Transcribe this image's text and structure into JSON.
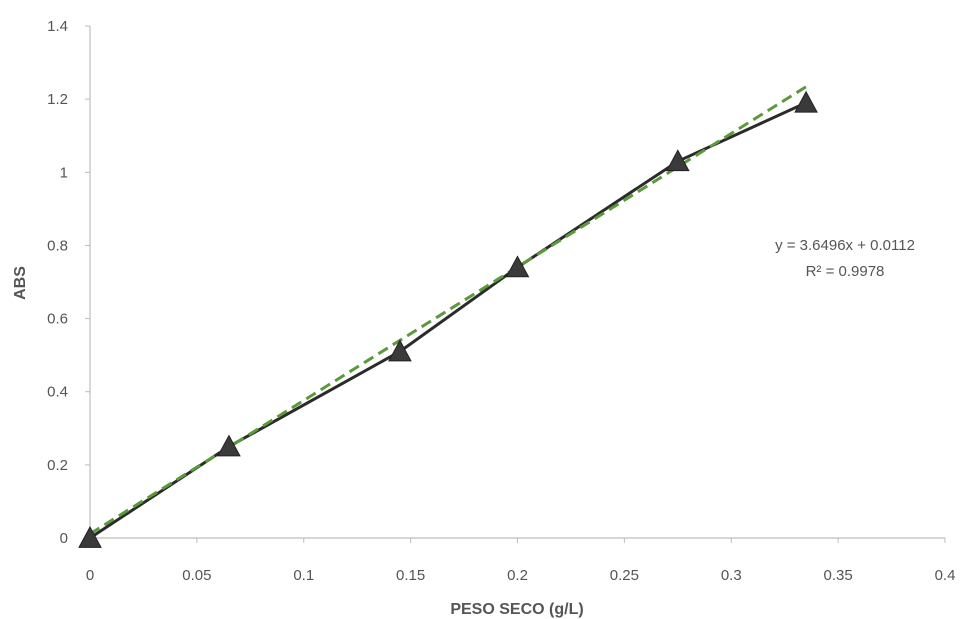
{
  "chart_data": {
    "type": "scatter",
    "title": "",
    "xlabel": "PESO SECO (g/L)",
    "ylabel": "ABS",
    "xlim": [
      0,
      0.4
    ],
    "ylim": [
      0,
      1.4
    ],
    "x_ticks": [
      "0",
      "0.05",
      "0.1",
      "0.15",
      "0.2",
      "0.25",
      "0.3",
      "0.35",
      "0.4"
    ],
    "y_ticks": [
      "0",
      "0.2",
      "0.4",
      "0.6",
      "0.8",
      "1",
      "1.2",
      "1.4"
    ],
    "grid": false,
    "series": [
      {
        "x": [
          0,
          0.065,
          0.145,
          0.2,
          0.275,
          0.335
        ],
        "y": [
          0,
          0.25,
          0.51,
          0.74,
          1.03,
          1.19
        ],
        "marker": "triangle",
        "line": "solid",
        "color": "#2b2b2b"
      }
    ],
    "trendline": {
      "type": "linear",
      "slope": 3.6496,
      "intercept": 0.0112,
      "color": "#5a9a3a",
      "line": "dashed"
    },
    "annotations": {
      "equation": "y = 3.6496x + 0.0112",
      "r_squared": "R² = 0.9978"
    }
  }
}
